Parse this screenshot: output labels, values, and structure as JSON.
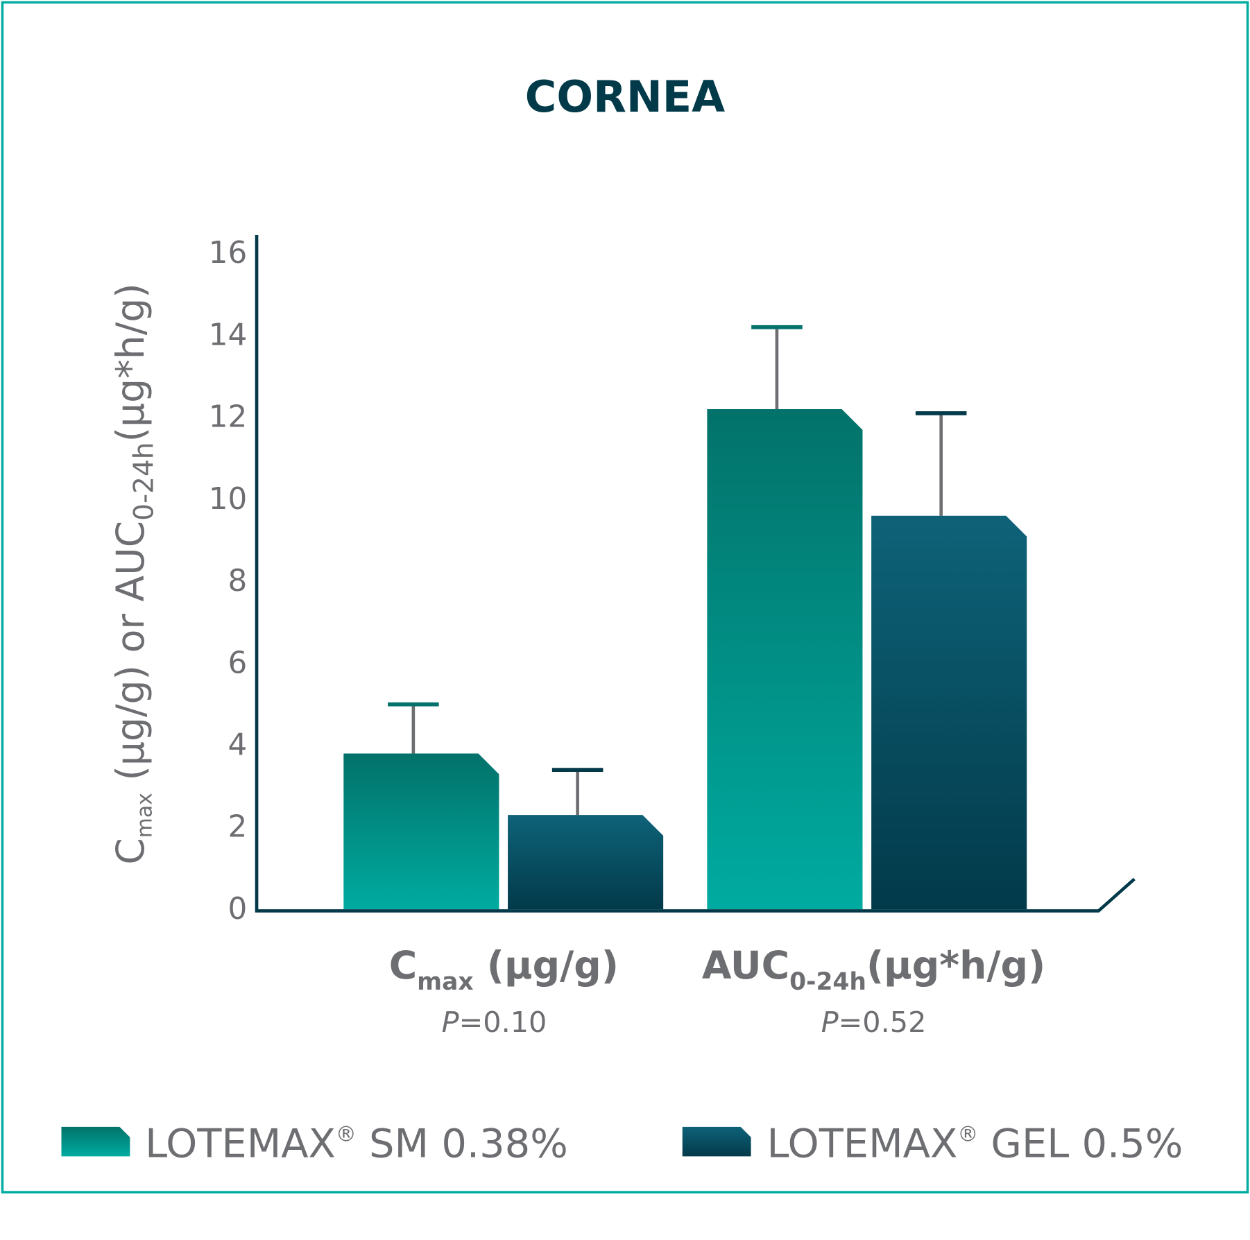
{
  "chart_data": {
    "type": "bar",
    "title": "CORNEA",
    "ylabel": {
      "main1": "C",
      "sub1": "max",
      "main2": " (µg/g) or AUC",
      "sub2": "0-24h",
      "main3": "(µg*h/g)"
    },
    "ylim": [
      0,
      16
    ],
    "yticks": [
      0,
      2,
      4,
      6,
      8,
      10,
      12,
      14,
      16
    ],
    "grid": false,
    "legend_position": "bottom",
    "categories": [
      {
        "main": "C",
        "sub": "max",
        "tail": " (µg/g)",
        "pvalue_prefix": "P",
        "pvalue": "=0.10"
      },
      {
        "main": "AUC",
        "sub": "0-24h",
        "tail": "(µg*h/g)",
        "pvalue_prefix": "P",
        "pvalue": "=0.52"
      }
    ],
    "series": [
      {
        "name": "LOTEMAX® SM 0.38%",
        "name_main": "LOTEMAX",
        "name_reg": "®",
        "name_tail": " SM 0.38%",
        "values": [
          3.8,
          12.2
        ],
        "error_upper": [
          5.0,
          14.2
        ],
        "color_top": "#02726A",
        "color_bottom": "#00ABA0"
      },
      {
        "name": "LOTEMAX® GEL 0.5%",
        "name_main": "LOTEMAX",
        "name_reg": "®",
        "name_tail": " GEL 0.5%",
        "values": [
          2.3,
          9.6
        ],
        "error_upper": [
          3.4,
          12.1
        ],
        "color_top": "#0E6278",
        "color_bottom": "#023A4A"
      }
    ],
    "colors": {
      "border": "#00ABA0",
      "title": "#023A4A",
      "axis": "#023A4A",
      "text": "#6D6E71",
      "error_bar": "#6D6E71"
    }
  }
}
